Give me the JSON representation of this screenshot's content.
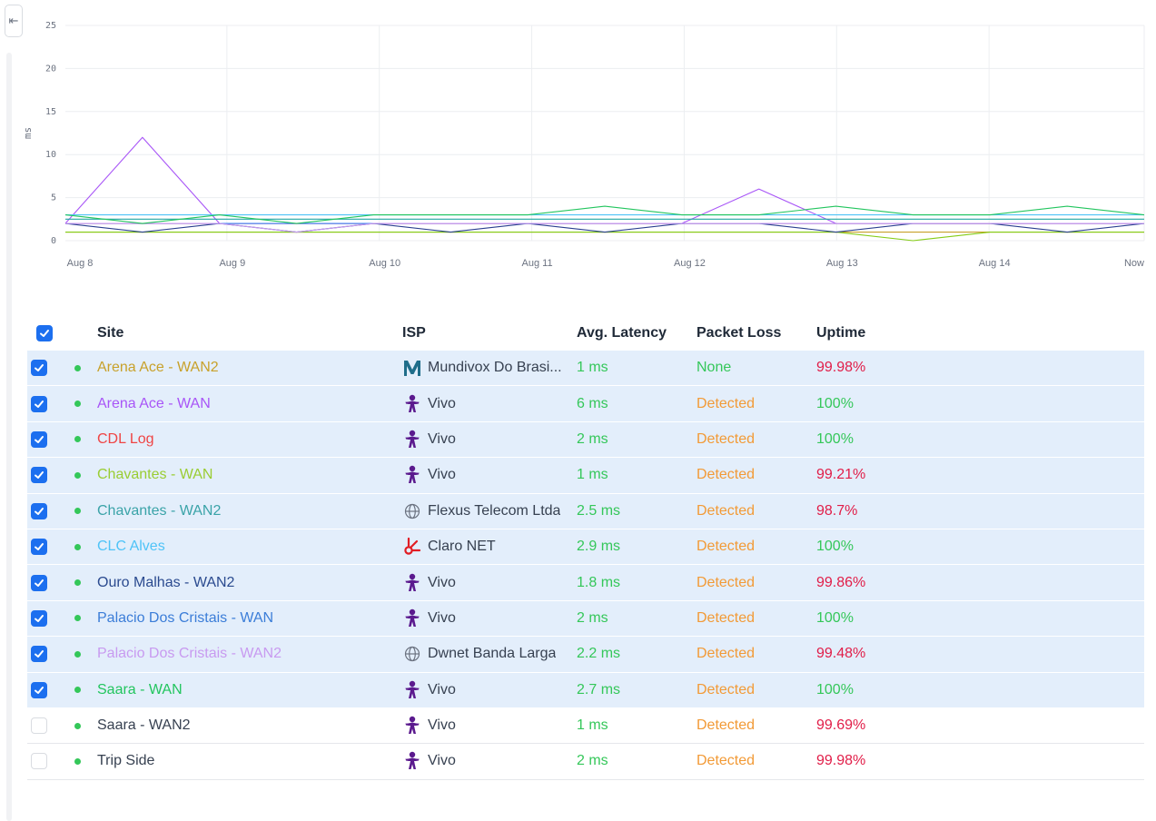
{
  "sidebar": {
    "collapse_icon": "collapse-left-icon",
    "collapse_glyph": "⇤"
  },
  "chart_data": {
    "type": "line",
    "ylabel": "ms",
    "ylim": [
      0,
      25
    ],
    "y_ticks": [
      "0",
      "5",
      "10",
      "15",
      "20",
      "25"
    ],
    "x_ticks": [
      "Aug 8",
      "Aug 9",
      "Aug 10",
      "Aug 11",
      "Aug 12",
      "Aug 13",
      "Aug 14",
      "Now"
    ],
    "x": [
      "Aug 8",
      "Aug 8 12h",
      "Aug 9",
      "Aug 9 12h",
      "Aug 10",
      "Aug 10 12h",
      "Aug 11",
      "Aug 11 12h",
      "Aug 12",
      "Aug 12 12h",
      "Aug 13",
      "Aug 13 12h",
      "Aug 14",
      "Aug 14 12h",
      "Now"
    ],
    "series": [
      {
        "color": "#c8a12a",
        "values": [
          1,
          1,
          1,
          1,
          1,
          1,
          1,
          1,
          1,
          1,
          1,
          1,
          1,
          1,
          1
        ]
      },
      {
        "color": "#a855f7",
        "values": [
          2,
          12,
          2,
          2,
          2,
          2,
          2,
          2,
          2,
          6,
          2,
          2,
          2,
          2,
          2
        ]
      },
      {
        "color": "#ef4444",
        "values": [
          2,
          2,
          2,
          2,
          2,
          2,
          2,
          2,
          2,
          2,
          2,
          2,
          2,
          2,
          2
        ]
      },
      {
        "color": "#84cc16",
        "values": [
          1,
          1,
          1,
          1,
          1,
          1,
          1,
          1,
          1,
          1,
          1,
          0,
          1,
          1,
          1
        ]
      },
      {
        "color": "#22a6a3",
        "values": [
          2.5,
          2.5,
          2.5,
          2.5,
          2.5,
          2.5,
          2.5,
          2.5,
          2.5,
          2.5,
          2.5,
          2.5,
          2.5,
          2.5,
          2.5
        ]
      },
      {
        "color": "#4fc3f7",
        "values": [
          3,
          3,
          3,
          3,
          3,
          3,
          3,
          3,
          3,
          3,
          3,
          3,
          3,
          3,
          3
        ]
      },
      {
        "color": "#2a3f8f",
        "values": [
          2,
          1,
          2,
          1,
          2,
          1,
          2,
          1,
          2,
          2,
          1,
          2,
          2,
          1,
          2
        ]
      },
      {
        "color": "#3b82f6",
        "values": [
          2,
          2,
          2,
          2,
          2,
          2,
          2,
          2,
          2,
          2,
          2,
          2,
          2,
          2,
          2
        ]
      },
      {
        "color": "#c89af0",
        "values": [
          2,
          2,
          2,
          1,
          2,
          2,
          2,
          2,
          2,
          2,
          2,
          2,
          2,
          2,
          2
        ]
      },
      {
        "color": "#22c55e",
        "values": [
          3,
          2,
          3,
          2,
          3,
          3,
          3,
          4,
          3,
          3,
          4,
          3,
          3,
          4,
          3
        ]
      }
    ]
  },
  "table": {
    "header": {
      "site": "Site",
      "isp": "ISP",
      "latency": "Avg. Latency",
      "loss": "Packet Loss",
      "uptime": "Uptime"
    },
    "rows": [
      {
        "checked": true,
        "site": "Arena Ace - WAN2",
        "site_color": "#c8a12a",
        "isp": "Mundivox Do Brasi...",
        "isp_icon": "mundivox-icon",
        "latency": "1 ms",
        "loss": "None",
        "loss_color": "#34c759",
        "uptime": "99.98%",
        "uptime_color": "#e11d48"
      },
      {
        "checked": true,
        "site": "Arena Ace - WAN",
        "site_color": "#a855f7",
        "isp": "Vivo",
        "isp_icon": "vivo-icon",
        "latency": "6 ms",
        "loss": "Detected",
        "loss_color": "#f29a36",
        "uptime": "100%",
        "uptime_color": "#34c759"
      },
      {
        "checked": true,
        "site": "CDL Log",
        "site_color": "#ef4444",
        "isp": "Vivo",
        "isp_icon": "vivo-icon",
        "latency": "2 ms",
        "loss": "Detected",
        "loss_color": "#f29a36",
        "uptime": "100%",
        "uptime_color": "#34c759"
      },
      {
        "checked": true,
        "site": "Chavantes - WAN",
        "site_color": "#9acd32",
        "isp": "Vivo",
        "isp_icon": "vivo-icon",
        "latency": "1 ms",
        "loss": "Detected",
        "loss_color": "#f29a36",
        "uptime": "99.21%",
        "uptime_color": "#e11d48"
      },
      {
        "checked": true,
        "site": "Chavantes - WAN2",
        "site_color": "#3aa3a8",
        "isp": "Flexus Telecom Ltda",
        "isp_icon": "globe-icon",
        "latency": "2.5 ms",
        "loss": "Detected",
        "loss_color": "#f29a36",
        "uptime": "98.7%",
        "uptime_color": "#e11d48"
      },
      {
        "checked": true,
        "site": "CLC Alves",
        "site_color": "#4fc3f7",
        "isp": "Claro NET",
        "isp_icon": "claro-icon",
        "latency": "2.9 ms",
        "loss": "Detected",
        "loss_color": "#f29a36",
        "uptime": "100%",
        "uptime_color": "#34c759"
      },
      {
        "checked": true,
        "site": "Ouro Malhas - WAN2",
        "site_color": "#2a4a8f",
        "isp": "Vivo",
        "isp_icon": "vivo-icon",
        "latency": "1.8 ms",
        "loss": "Detected",
        "loss_color": "#f29a36",
        "uptime": "99.86%",
        "uptime_color": "#e11d48"
      },
      {
        "checked": true,
        "site": "Palacio Dos Cristais - WAN",
        "site_color": "#3b7dd8",
        "isp": "Vivo",
        "isp_icon": "vivo-icon",
        "latency": "2 ms",
        "loss": "Detected",
        "loss_color": "#f29a36",
        "uptime": "100%",
        "uptime_color": "#34c759"
      },
      {
        "checked": true,
        "site": "Palacio Dos Cristais - WAN2",
        "site_color": "#c89af0",
        "isp": "Dwnet Banda Larga",
        "isp_icon": "globe-icon",
        "latency": "2.2 ms",
        "loss": "Detected",
        "loss_color": "#f29a36",
        "uptime": "99.48%",
        "uptime_color": "#e11d48"
      },
      {
        "checked": true,
        "site": "Saara - WAN",
        "site_color": "#22c55e",
        "isp": "Vivo",
        "isp_icon": "vivo-icon",
        "latency": "2.7 ms",
        "loss": "Detected",
        "loss_color": "#f29a36",
        "uptime": "100%",
        "uptime_color": "#34c759"
      },
      {
        "checked": false,
        "site": "Saara - WAN2",
        "site_color": "#374151",
        "isp": "Vivo",
        "isp_icon": "vivo-icon",
        "latency": "1 ms",
        "loss": "Detected",
        "loss_color": "#f29a36",
        "uptime": "99.69%",
        "uptime_color": "#e11d48"
      },
      {
        "checked": false,
        "site": "Trip Side",
        "site_color": "#374151",
        "isp": "Vivo",
        "isp_icon": "vivo-icon",
        "latency": "2 ms",
        "loss": "Detected",
        "loss_color": "#f29a36",
        "uptime": "99.98%",
        "uptime_color": "#e11d48"
      }
    ]
  }
}
